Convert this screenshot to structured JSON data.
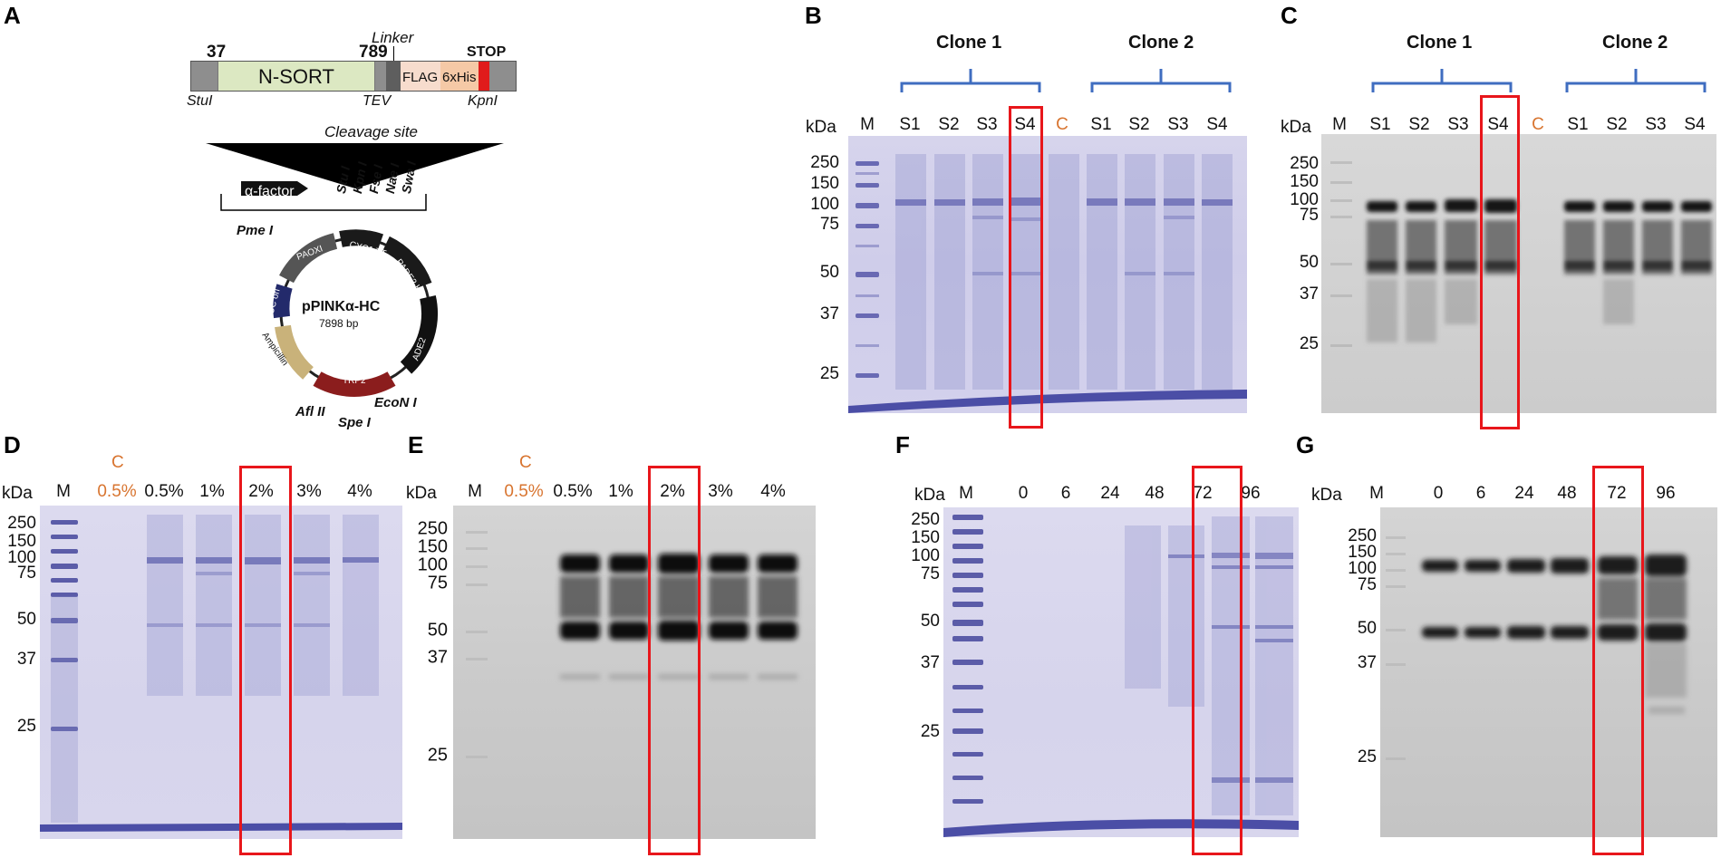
{
  "colors": {
    "coomassie": "#d1cfea",
    "coomassie_band": "#5b5ca8",
    "western_bg": "#cbcbcb",
    "western_band": "#111111",
    "highlight_box": "#e8161b",
    "bracket": "#3f6dc0",
    "control_label": "#d8742f"
  },
  "panel_a": {
    "label": "A",
    "construct": {
      "pos_start": "37",
      "pos_end": "789",
      "linker": "Linker",
      "stop": "STOP",
      "domain": "N-SORT",
      "flag": "FLAG",
      "his": "6xHis",
      "site_left": "StuI",
      "site_tev": "TEV",
      "site_right": "KpnI",
      "cleavage": "Cleavage site"
    },
    "mcs": {
      "alpha_factor": "α-factor",
      "sites": [
        "Stu I",
        "Kpn I",
        "Fse I",
        "Nae I",
        "Swa I"
      ]
    },
    "plasmid": {
      "name": "pPINKα-HC",
      "size": "7898 bp",
      "elements": [
        "PAOXI",
        "CYC1 TT",
        "PADE2 HC",
        "ADE2",
        "TRP2",
        "Ampicillin",
        "pUC ori"
      ],
      "sites": [
        "Pme I",
        "EcoN I",
        "Spe I",
        "Afl II"
      ]
    }
  },
  "panel_b": {
    "label": "B",
    "clone1": "Clone  1",
    "clone2": "Clone 2",
    "kda": "kDa",
    "lanes": [
      "M",
      "S1",
      "S2",
      "S3",
      "S4",
      "C",
      "S1",
      "S2",
      "S3",
      "S4"
    ],
    "markers": [
      "250",
      "150",
      "100",
      "75",
      "50",
      "37",
      "25"
    ]
  },
  "panel_c": {
    "label": "C",
    "clone1": "Clone 1",
    "clone2": "Clone 2",
    "kda": "kDa",
    "lanes": [
      "M",
      "S1",
      "S2",
      "S3",
      "S4",
      "C",
      "S1",
      "S2",
      "S3",
      "S4"
    ],
    "markers": [
      "250",
      "150",
      "100",
      "75",
      "50",
      "37",
      "25"
    ]
  },
  "panel_d": {
    "label": "D",
    "kda": "kDa",
    "control_top": "C",
    "lanes": [
      "M",
      "0.5%",
      "0.5%",
      "1%",
      "2%",
      "3%",
      "4%"
    ],
    "markers": [
      "250",
      "150",
      "100",
      "75",
      "50",
      "37",
      "25"
    ]
  },
  "panel_e": {
    "label": "E",
    "kda": "kDa",
    "control_top": "C",
    "lanes": [
      "M",
      "0.5%",
      "0.5%",
      "1%",
      "2%",
      "3%",
      "4%"
    ],
    "markers": [
      "250",
      "150",
      "100",
      "75",
      "50",
      "37",
      "25"
    ]
  },
  "panel_f": {
    "label": "F",
    "kda": "kDa",
    "lanes": [
      "M",
      "0",
      "6",
      "24",
      "48",
      "72",
      "96"
    ],
    "markers": [
      "250",
      "150",
      "100",
      "75",
      "50",
      "37",
      "25"
    ]
  },
  "panel_g": {
    "label": "G",
    "kda": "kDa",
    "lanes": [
      "M",
      "0",
      "6",
      "24",
      "48",
      "72",
      "96"
    ],
    "markers": [
      "250",
      "150",
      "100",
      "75",
      "50",
      "37",
      "25"
    ]
  }
}
